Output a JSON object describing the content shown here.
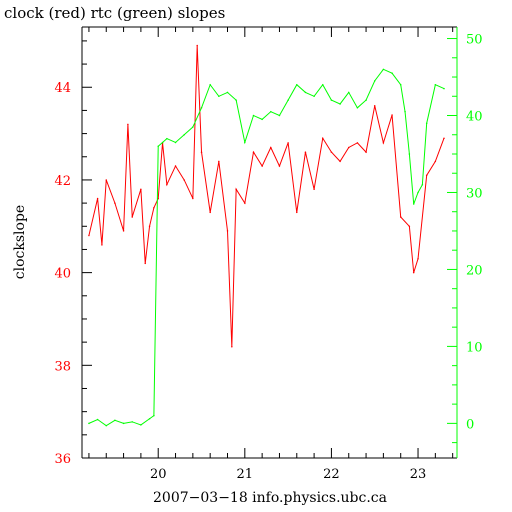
{
  "chart_data": {
    "type": "line",
    "title": "clock (red) rtc (green) slopes",
    "xlabel": "2007−03−18 info.physics.ubc.ca",
    "ylabel": "clockslope",
    "xlim": [
      19.12,
      23.45
    ],
    "ylim_left": [
      36.0,
      45.3
    ],
    "ylim_right": [
      -4.5,
      51.5
    ],
    "x_ticks": [
      "20",
      "21",
      "22",
      "23"
    ],
    "y_left_ticks": [
      "36",
      "38",
      "40",
      "42",
      "44"
    ],
    "y_right_ticks": [
      "0",
      "10",
      "20",
      "30",
      "40",
      "50"
    ],
    "grid": false,
    "colors": {
      "clock": "#ff0000",
      "rtc": "#00ff00",
      "axis": "#000000",
      "left_tick_labels": "#ff0000",
      "right_axis": "#00ff00"
    },
    "series": [
      {
        "axis": "left",
        "color": "#ff0000",
        "x": [
          19.2,
          19.3,
          19.35,
          19.4,
          19.5,
          19.6,
          19.65,
          19.7,
          19.8,
          19.85,
          19.9,
          19.95,
          20.0,
          20.05,
          20.1,
          20.2,
          20.3,
          20.4,
          20.45,
          20.5,
          20.6,
          20.7,
          20.8,
          20.85,
          20.9,
          21.0,
          21.1,
          21.2,
          21.3,
          21.4,
          21.5,
          21.6,
          21.7,
          21.8,
          21.9,
          22.0,
          22.1,
          22.2,
          22.3,
          22.4,
          22.5,
          22.6,
          22.7,
          22.8,
          22.9,
          22.95,
          23.0,
          23.1,
          23.2,
          23.3
        ],
        "y": [
          40.8,
          41.6,
          40.6,
          42.0,
          41.5,
          40.9,
          43.2,
          41.2,
          41.8,
          40.2,
          41.0,
          41.4,
          41.6,
          42.8,
          41.9,
          42.3,
          42.0,
          41.6,
          44.9,
          42.6,
          41.3,
          42.4,
          40.9,
          38.4,
          41.8,
          41.5,
          42.6,
          42.3,
          42.7,
          42.3,
          42.8,
          41.3,
          42.6,
          41.8,
          42.9,
          42.6,
          42.4,
          42.7,
          42.8,
          42.6,
          43.6,
          42.8,
          43.4,
          41.2,
          41.0,
          40.0,
          40.3,
          42.1,
          42.4,
          42.9
        ]
      },
      {
        "axis": "right",
        "color": "#00ff00",
        "x": [
          19.2,
          19.3,
          19.4,
          19.5,
          19.6,
          19.7,
          19.8,
          19.9,
          19.95,
          20.0,
          20.05,
          20.1,
          20.2,
          20.3,
          20.4,
          20.5,
          20.6,
          20.7,
          20.8,
          20.9,
          21.0,
          21.1,
          21.2,
          21.3,
          21.4,
          21.5,
          21.6,
          21.7,
          21.8,
          21.9,
          22.0,
          22.1,
          22.2,
          22.3,
          22.4,
          22.5,
          22.6,
          22.7,
          22.8,
          22.85,
          22.9,
          22.95,
          23.0,
          23.05,
          23.1,
          23.2,
          23.3
        ],
        "y": [
          0.0,
          0.5,
          -0.3,
          0.4,
          0.0,
          0.2,
          -0.2,
          0.6,
          1.0,
          36.0,
          36.5,
          37.0,
          36.5,
          37.5,
          38.5,
          41.0,
          44.0,
          42.5,
          43.0,
          42.0,
          36.5,
          40.0,
          39.5,
          40.5,
          40.0,
          42.0,
          44.0,
          43.0,
          42.5,
          44.0,
          42.0,
          41.5,
          43.0,
          41.0,
          42.0,
          44.5,
          46.0,
          45.5,
          44.0,
          40.5,
          35.0,
          28.5,
          30.0,
          31.0,
          39.0,
          44.0,
          43.5
        ]
      }
    ]
  }
}
